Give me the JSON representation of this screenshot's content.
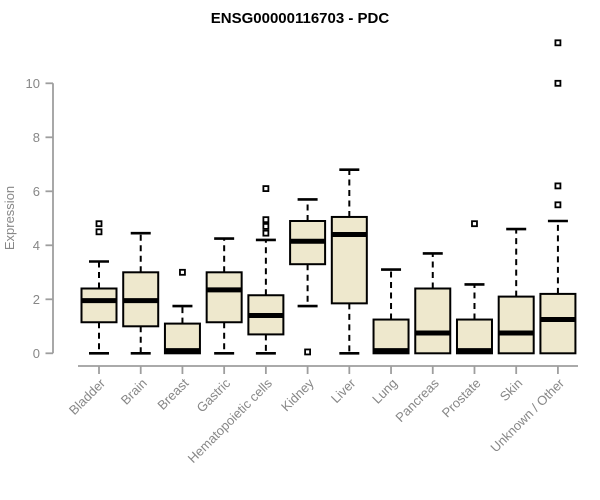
{
  "chart_data": {
    "type": "boxplot",
    "title": "ENSG00000116703 - PDC",
    "xlabel": "",
    "ylabel": "Expression",
    "ylim": [
      0,
      11.6
    ],
    "y_ticks": [
      0,
      2,
      4,
      6,
      8,
      10
    ],
    "grid": false,
    "legend": "none",
    "categories": [
      "Bladder",
      "Brain",
      "Breast",
      "Gastric",
      "Hematopoietic cells",
      "Kidney",
      "Liver",
      "Lung",
      "Pancreas",
      "Prostate",
      "Skin",
      "Unknown / Other"
    ],
    "series": [
      {
        "name": "Bladder",
        "low": 0,
        "q1": 1.15,
        "median": 1.95,
        "q3": 2.4,
        "high": 3.4,
        "outliers": [
          4.5,
          4.8
        ]
      },
      {
        "name": "Brain",
        "low": 0,
        "q1": 1.0,
        "median": 1.95,
        "q3": 3.0,
        "high": 4.45,
        "outliers": []
      },
      {
        "name": "Breast",
        "low": 0,
        "q1": 0,
        "median": 0.1,
        "q3": 1.1,
        "high": 1.75,
        "outliers": [
          3.0
        ]
      },
      {
        "name": "Gastric",
        "low": 0,
        "q1": 1.15,
        "median": 2.35,
        "q3": 3.0,
        "high": 4.25,
        "outliers": []
      },
      {
        "name": "Hematopoietic cells",
        "low": 0,
        "q1": 0.7,
        "median": 1.4,
        "q3": 2.15,
        "high": 4.2,
        "outliers": [
          4.45,
          4.7,
          4.95,
          6.1
        ]
      },
      {
        "name": "Kidney",
        "low": 1.75,
        "q1": 3.3,
        "median": 4.15,
        "q3": 4.9,
        "high": 5.7,
        "outliers": [
          0.05
        ]
      },
      {
        "name": "Liver",
        "low": 0,
        "q1": 1.85,
        "median": 4.4,
        "q3": 5.05,
        "high": 6.8,
        "outliers": []
      },
      {
        "name": "Lung",
        "low": 0,
        "q1": 0,
        "median": 0.1,
        "q3": 1.25,
        "high": 3.1,
        "outliers": []
      },
      {
        "name": "Pancreas",
        "low": 0,
        "q1": 0,
        "median": 0.75,
        "q3": 2.4,
        "high": 3.7,
        "outliers": []
      },
      {
        "name": "Prostate",
        "low": 0,
        "q1": 0,
        "median": 0.1,
        "q3": 1.25,
        "high": 2.55,
        "outliers": [
          4.8
        ]
      },
      {
        "name": "Skin",
        "low": 0,
        "q1": 0,
        "median": 0.75,
        "q3": 2.1,
        "high": 4.6,
        "outliers": []
      },
      {
        "name": "Unknown / Other",
        "low": 0,
        "q1": 0,
        "median": 1.25,
        "q3": 2.2,
        "high": 4.9,
        "outliers": [
          5.5,
          6.2,
          10.0,
          11.5
        ]
      }
    ],
    "colors": {
      "box_fill": "#EEE8CD",
      "box_border": "#000000",
      "median": "#000000",
      "whisker": "#000000",
      "outlier_border": "#000000",
      "outlier_fill": "#FFFFFF",
      "axis_line": "#9E9E9E",
      "tick_text": "#878787",
      "title_text": "#000000",
      "background": "#FFFFFF"
    }
  }
}
